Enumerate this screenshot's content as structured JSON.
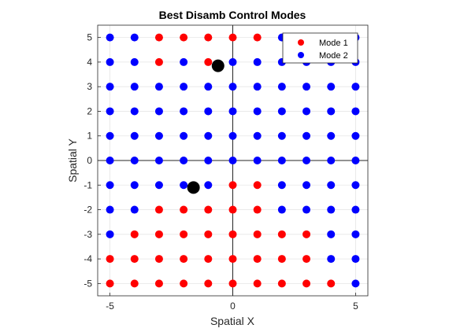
{
  "chart_data": {
    "type": "scatter",
    "title": "Best Disamb Control Modes",
    "xlabel": "Spatial X",
    "ylabel": "Spatial Y",
    "xlim": [
      -5.5,
      5.5
    ],
    "ylim": [
      -5.5,
      5.5
    ],
    "xticks": [
      -5,
      0,
      5
    ],
    "yticks": [
      -5,
      -4,
      -3,
      -2,
      -1,
      0,
      1,
      2,
      3,
      4,
      5
    ],
    "grid": true,
    "legend_position": "top-right",
    "series": [
      {
        "name": "Mode 1",
        "color": "#ff0000",
        "points": [
          [
            -3,
            5
          ],
          [
            -2,
            5
          ],
          [
            -1,
            5
          ],
          [
            0,
            5
          ],
          [
            1,
            5
          ],
          [
            -3,
            4
          ],
          [
            -1,
            4
          ],
          [
            0,
            -1
          ],
          [
            1,
            -1
          ],
          [
            -3,
            -2
          ],
          [
            -2,
            -2
          ],
          [
            -1,
            -2
          ],
          [
            0,
            -2
          ],
          [
            1,
            -2
          ],
          [
            -4,
            -3
          ],
          [
            -3,
            -3
          ],
          [
            -2,
            -3
          ],
          [
            -1,
            -3
          ],
          [
            0,
            -3
          ],
          [
            1,
            -3
          ],
          [
            2,
            -3
          ],
          [
            3,
            -3
          ],
          [
            -5,
            -4
          ],
          [
            -4,
            -4
          ],
          [
            -3,
            -4
          ],
          [
            -2,
            -4
          ],
          [
            -1,
            -4
          ],
          [
            0,
            -4
          ],
          [
            1,
            -4
          ],
          [
            2,
            -4
          ],
          [
            3,
            -4
          ],
          [
            -5,
            -5
          ],
          [
            -4,
            -5
          ],
          [
            -3,
            -5
          ],
          [
            -2,
            -5
          ],
          [
            -1,
            -5
          ],
          [
            0,
            -5
          ],
          [
            1,
            -5
          ],
          [
            2,
            -5
          ],
          [
            3,
            -5
          ],
          [
            4,
            -5
          ]
        ]
      },
      {
        "name": "Mode 2",
        "color": "#0000ff",
        "points": "all-other-grid-points"
      }
    ],
    "markers": [
      {
        "x": -0.6,
        "y": 3.85,
        "color": "#000000"
      },
      {
        "x": -1.6,
        "y": -1.1,
        "color": "#000000"
      }
    ]
  }
}
